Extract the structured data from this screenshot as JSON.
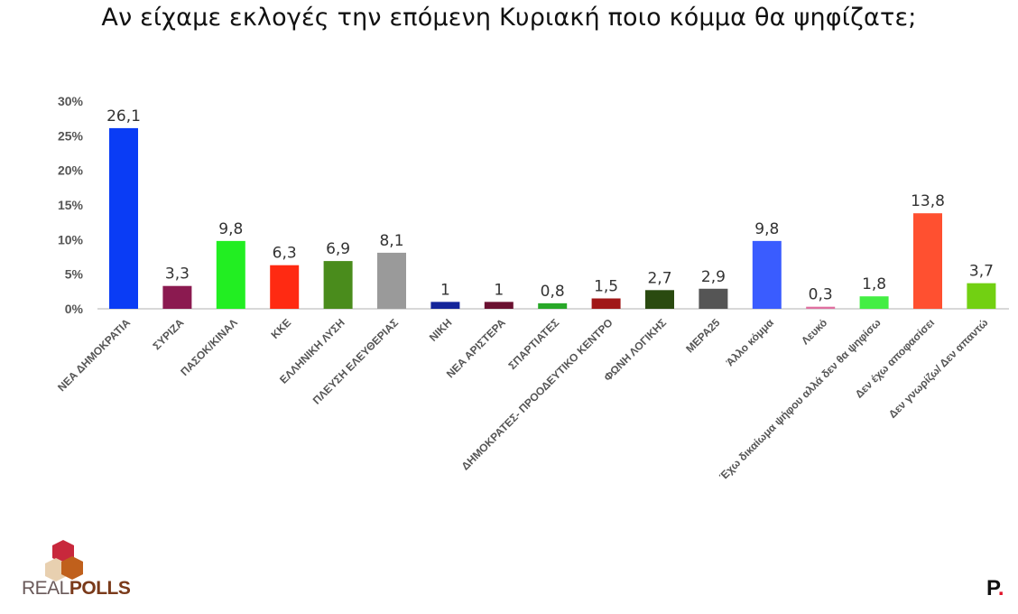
{
  "chart_data": {
    "type": "bar",
    "title": "Αν είχαμε εκλογές την επόμενη Κυριακή ποιο κόμμα θα ψηφίζατε;",
    "xlabel": "",
    "ylabel": "",
    "ylim": [
      0,
      30
    ],
    "yticks": [
      "0%",
      "5%",
      "10%",
      "15%",
      "20%",
      "25%",
      "30%"
    ],
    "ytick_values": [
      0,
      5,
      10,
      15,
      20,
      25,
      30
    ],
    "categories": [
      "ΝΕΑ ΔΗΜΟΚΡΑΤΙΑ",
      "ΣΥΡΙΖΑ",
      "ΠΑΣΟΚ/ΚΙΝΑΛ",
      "ΚΚΕ",
      "ΕΛΛΗΝΙΚΗ ΛΥΣΗ",
      "ΠΛΕΥΣΗ ΕΛΕΥΘΕΡΙΑΣ",
      "ΝΙΚΗ",
      "ΝΕΑ ΑΡΙΣΤΕΡΑ",
      "ΣΠΑΡΤΙΑΤΕΣ",
      "ΔΗΜΟΚΡΑΤΕΣ- ΠΡΟΟΔΕΥΤΙΚΟ ΚΕΝΤΡΟ",
      "ΦΩΝΗ ΛΟΓΙΚΗΣ",
      "ΜΕΡΑ25",
      "Άλλο κόμμα",
      "Λευκό",
      "Έχω δικαίωμα ψήφου αλλά δεν θα ψηφίσω",
      "Δεν έχω αποφασίσει",
      "Δεν γνωρίζω/ Δεν απαντώ"
    ],
    "values": [
      26.1,
      3.3,
      9.8,
      6.3,
      6.9,
      8.1,
      1,
      1,
      0.8,
      1.5,
      2.7,
      2.9,
      9.8,
      0.3,
      1.8,
      13.8,
      3.7
    ],
    "data_labels": [
      "26,1",
      "3,3",
      "9,8",
      "6,3",
      "6,9",
      "8,1",
      "1",
      "1",
      "0,8",
      "1,5",
      "2,7",
      "2,9",
      "9,8",
      "0,3",
      "1,8",
      "13,8",
      "3,7"
    ],
    "colors": [
      "#0a3cf5",
      "#8b1a50",
      "#22ee22",
      "#ff2a12",
      "#4a8c1c",
      "#9a9a9a",
      "#14259a",
      "#6a1030",
      "#28a828",
      "#a01818",
      "#2a4a10",
      "#555555",
      "#3a5cff",
      "#e070a0",
      "#44ee44",
      "#ff5030",
      "#72d012"
    ],
    "grid": false,
    "legend": "none"
  },
  "branding": {
    "logo_left": "REALPOLLS",
    "logo_right": "P."
  }
}
